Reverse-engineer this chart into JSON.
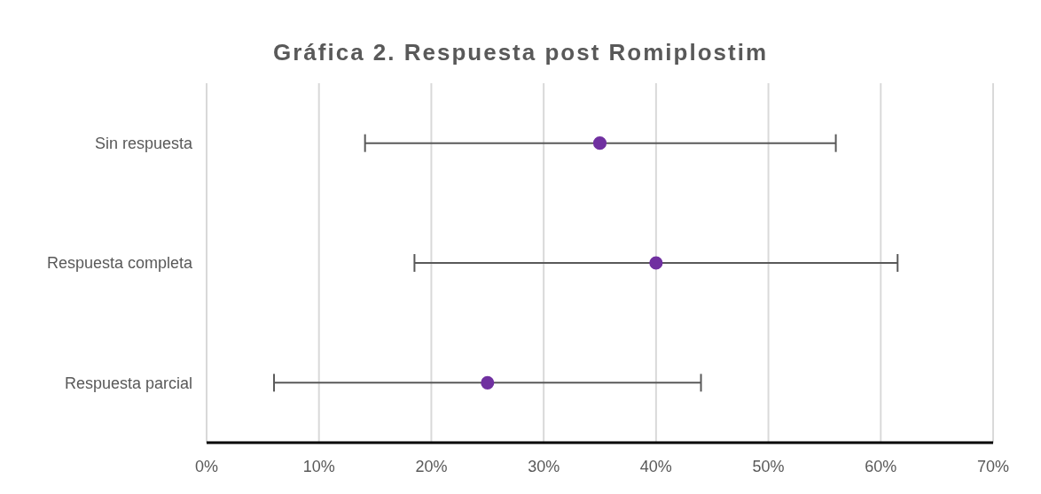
{
  "chart_data": {
    "type": "scatter",
    "orientation": "horizontal",
    "title": "Gráfica 2. Respuesta post Romiplostim",
    "categories": [
      "Sin respuesta",
      "Respuesta completa",
      "Respuesta parcial"
    ],
    "values": [
      35,
      40,
      25
    ],
    "errors": [
      [
        14.1,
        56
      ],
      [
        18.5,
        61.5
      ],
      [
        6,
        44
      ]
    ],
    "color": "#7030a0",
    "marker": "circle",
    "xlim": [
      0,
      70
    ],
    "xticks": [
      {
        "value": 0,
        "label": "0%"
      },
      {
        "value": 10,
        "label": "10%"
      },
      {
        "value": 20,
        "label": "20%"
      },
      {
        "value": 30,
        "label": "30%"
      },
      {
        "value": 40,
        "label": "40%"
      },
      {
        "value": 50,
        "label": "50%"
      },
      {
        "value": 60,
        "label": "60%"
      },
      {
        "value": 70,
        "label": "70%"
      }
    ],
    "grid": "x"
  }
}
